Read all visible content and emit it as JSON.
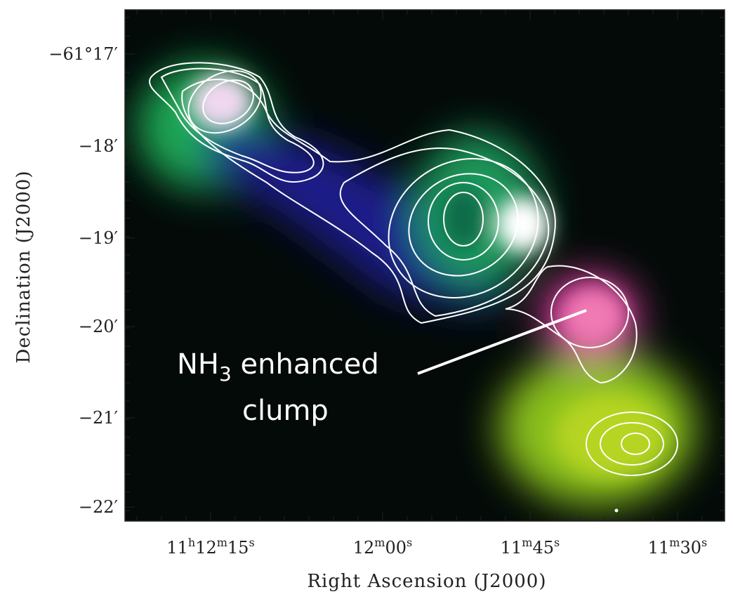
{
  "figure": {
    "x_axis": {
      "label": "Right Ascension (J2000)",
      "ticks": [
        [
          "11",
          "h",
          "12",
          "m",
          "15",
          "s"
        ],
        [
          "12",
          "m",
          "00",
          "s"
        ],
        [
          "11",
          "m",
          "45",
          "s"
        ],
        [
          "11",
          "m",
          "30",
          "s"
        ]
      ]
    },
    "y_axis": {
      "label": "Declination (J2000)",
      "ticks": [
        "−61°17′",
        "−18′",
        "−19′",
        "−20′",
        "−21′",
        "−22′"
      ]
    },
    "annotation": {
      "line1": [
        "NH",
        "3",
        " enhanced"
      ],
      "line2": "clump"
    }
  }
}
